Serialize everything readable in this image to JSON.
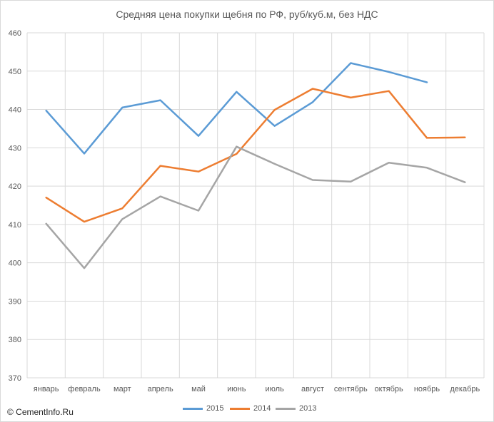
{
  "chart_data": {
    "type": "line",
    "title": "Средняя цена покупки щебня по РФ, руб/куб.м, без НДС",
    "xlabel": "",
    "ylabel": "",
    "categories": [
      "январь",
      "февраль",
      "март",
      "апрель",
      "май",
      "июнь",
      "июль",
      "август",
      "сентябрь",
      "октябрь",
      "ноябрь",
      "декабрь"
    ],
    "ylim": [
      370,
      460
    ],
    "yticks": [
      370,
      380,
      390,
      400,
      410,
      420,
      430,
      440,
      450,
      460
    ],
    "grid": true,
    "legend_position": "bottom",
    "series": [
      {
        "name": "2015",
        "color": "#5b9bd5",
        "values": [
          439.7,
          428.5,
          440.5,
          442.4,
          433.1,
          444.6,
          435.7,
          441.9,
          452.1,
          449.8,
          447.1,
          null
        ]
      },
      {
        "name": "2014",
        "color": "#ed7d31",
        "values": [
          417.0,
          410.7,
          414.2,
          425.3,
          423.8,
          428.4,
          439.9,
          445.4,
          443.1,
          444.8,
          432.6,
          432.7
        ]
      },
      {
        "name": "2013",
        "color": "#a5a5a5",
        "values": [
          410.2,
          398.6,
          411.4,
          417.3,
          413.6,
          430.3,
          425.8,
          421.6,
          421.2,
          426.1,
          424.8,
          421.0
        ]
      }
    ]
  },
  "footer": {
    "copyright": "© CementInfo.Ru"
  }
}
